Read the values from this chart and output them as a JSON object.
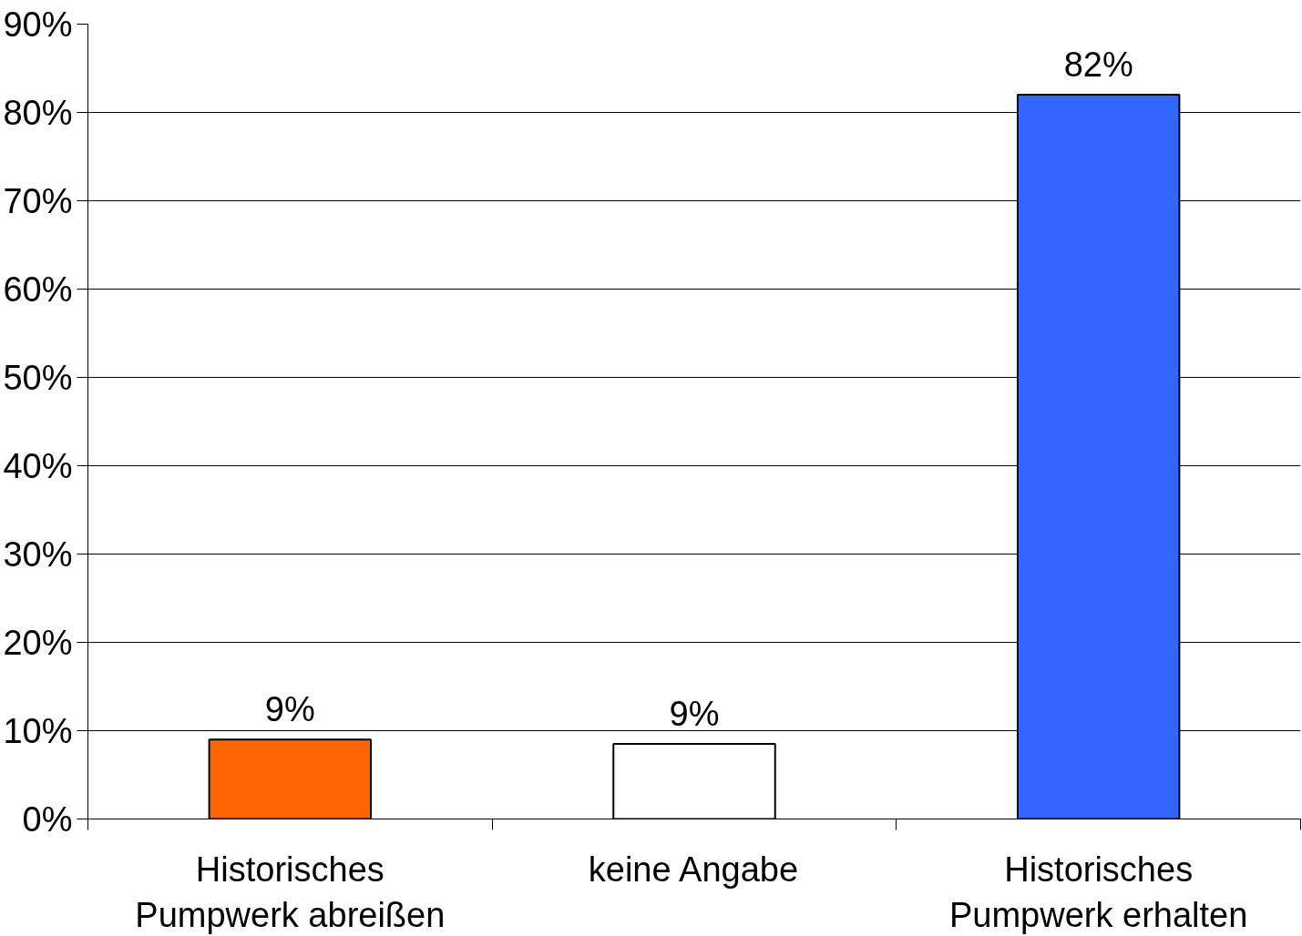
{
  "chart_data": {
    "type": "bar",
    "categories": [
      "Historisches\nPumpwerk abreißen",
      "keine Angabe",
      "Historisches\nPumpwerk erhalten"
    ],
    "values": [
      9,
      8.5,
      82
    ],
    "colors": [
      "#ff6600",
      "#ffffff",
      "#3366ff"
    ],
    "value_labels": [
      "9%",
      "9%",
      "82%"
    ],
    "ylim": [
      0,
      90
    ],
    "yticks": [
      {
        "value": 0,
        "label": "0%"
      },
      {
        "value": 10,
        "label": "10%"
      },
      {
        "value": 20,
        "label": "20%"
      },
      {
        "value": 30,
        "label": "30%"
      },
      {
        "value": 40,
        "label": "40%"
      },
      {
        "value": 50,
        "label": "50%"
      },
      {
        "value": 60,
        "label": "60%"
      },
      {
        "value": 70,
        "label": "70%"
      },
      {
        "value": 80,
        "label": "80%"
      },
      {
        "value": 90,
        "label": "90%"
      }
    ],
    "grid": "y"
  }
}
